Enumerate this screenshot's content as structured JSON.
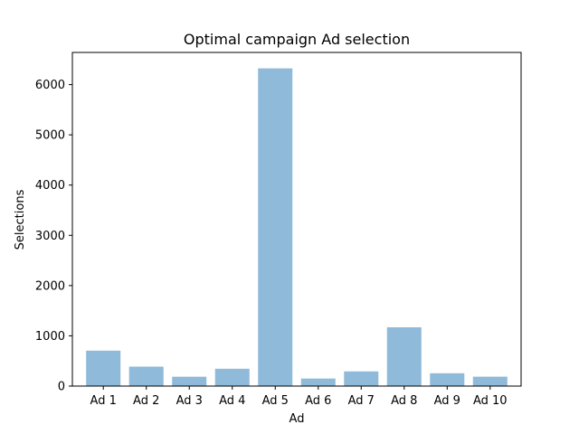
{
  "chart_data": {
    "type": "bar",
    "title": "Optimal campaign Ad selection",
    "xlabel": "Ad",
    "ylabel": "Selections",
    "categories": [
      "Ad 1",
      "Ad 2",
      "Ad 3",
      "Ad 4",
      "Ad 5",
      "Ad 6",
      "Ad 7",
      "Ad 8",
      "Ad 9",
      "Ad 10"
    ],
    "values": [
      705,
      387,
      186,
      345,
      6323,
      150,
      292,
      1170,
      255,
      187
    ],
    "ylim": [
      0,
      6640
    ],
    "yticks": [
      0,
      1000,
      2000,
      3000,
      4000,
      5000,
      6000
    ],
    "bar_color": "#8fbad9",
    "grid": false,
    "legend": "none"
  }
}
